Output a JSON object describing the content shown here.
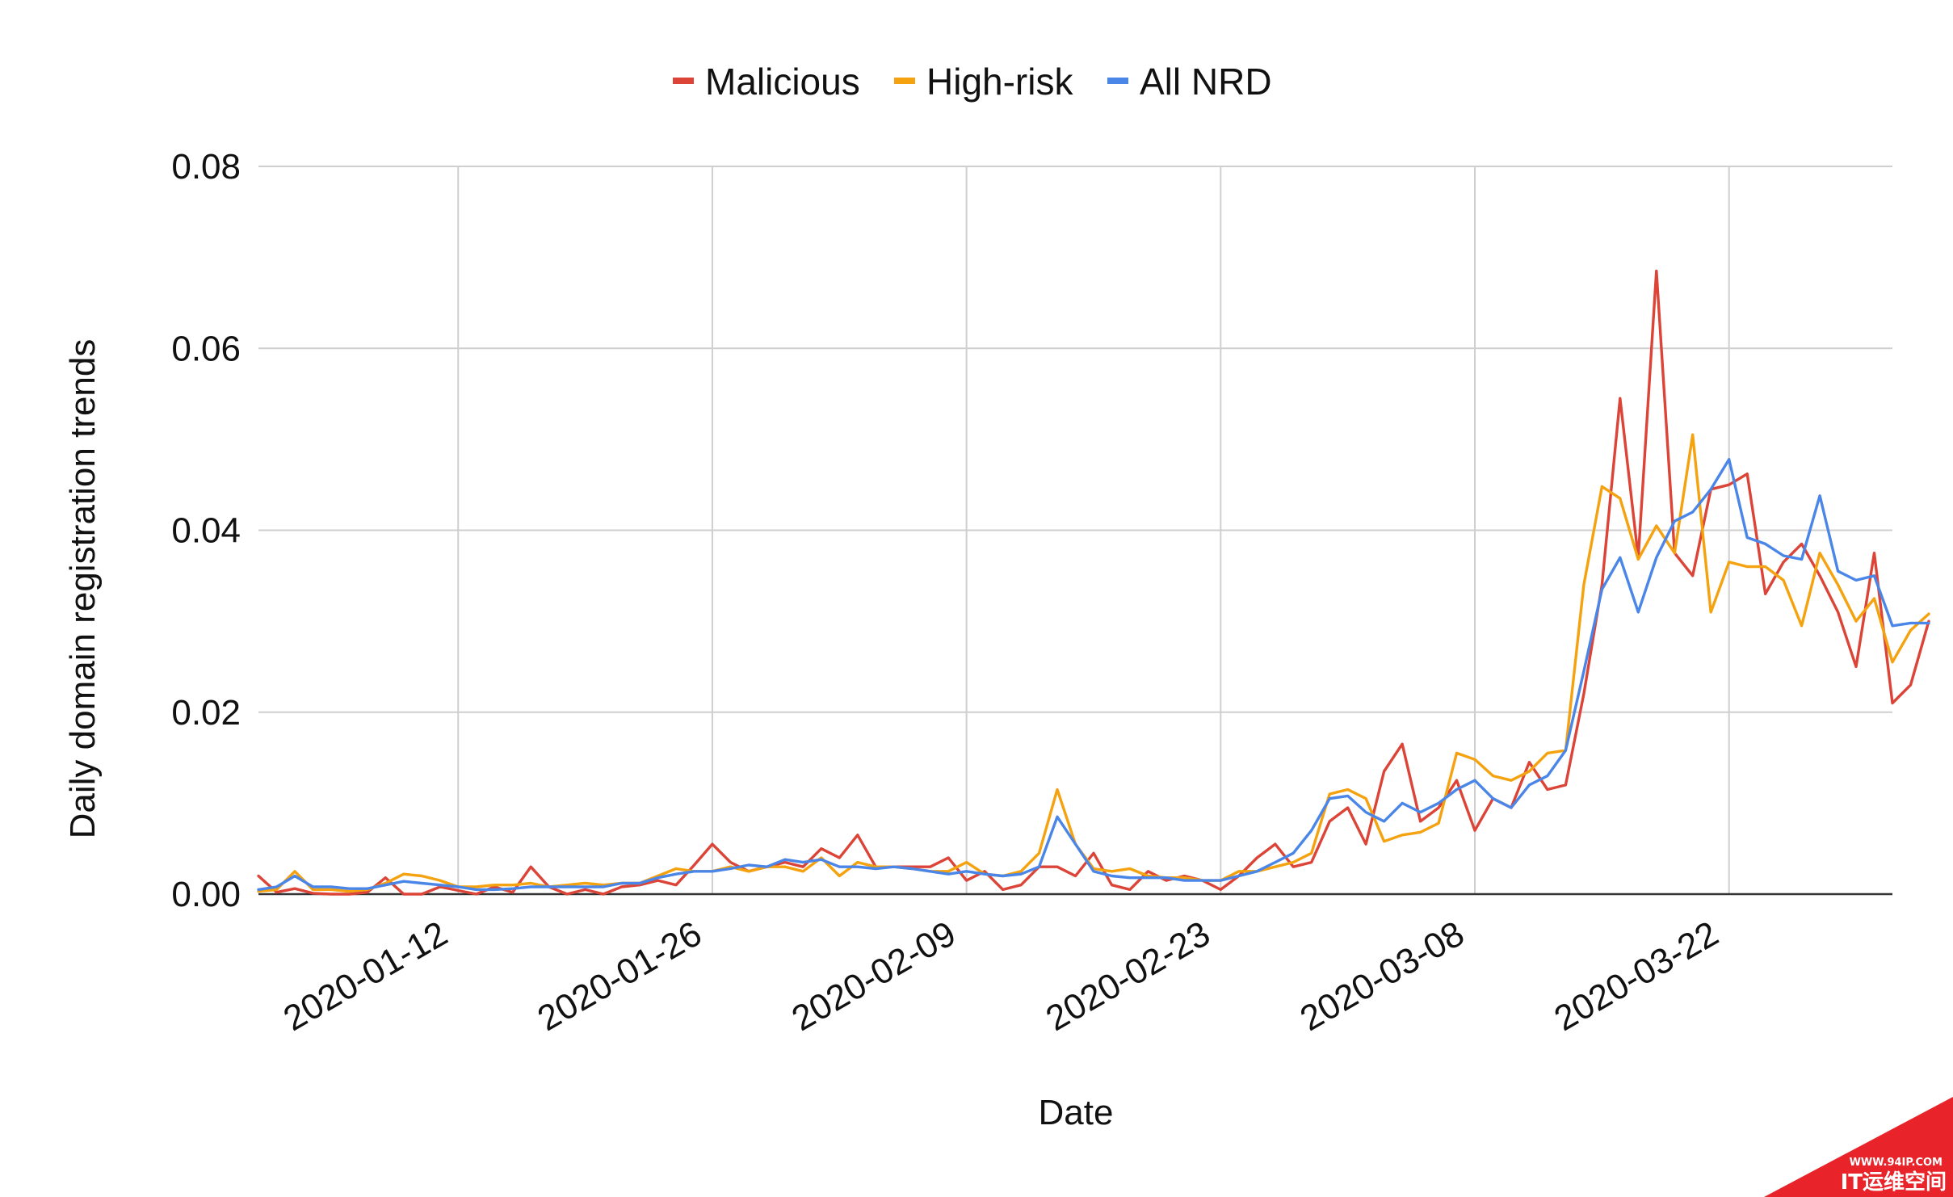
{
  "chart_data": {
    "type": "line",
    "title": "",
    "xlabel": "Date",
    "ylabel": "Daily domain registration trends",
    "ylim": [
      0,
      0.08
    ],
    "y_ticks": [
      "0.00",
      "0.02",
      "0.04",
      "0.06",
      "0.08"
    ],
    "y_tick_values": [
      0,
      0.02,
      0.04,
      0.06,
      0.08
    ],
    "x_start": "2020-01-01",
    "x_end": "2020-03-31",
    "x_ticks": [
      "2020-01-12",
      "2020-01-26",
      "2020-02-09",
      "2020-02-23",
      "2020-03-08",
      "2020-03-22"
    ],
    "grid": true,
    "legend_position": "top",
    "series": [
      {
        "name": "Malicious",
        "color": "#db4437",
        "values": [
          0.002,
          0.0002,
          0.0006,
          0.0001,
          0,
          0,
          0.0002,
          0.0018,
          0,
          0,
          0.0008,
          0.0004,
          0,
          0.0008,
          0.0002,
          0.003,
          0.0008,
          0,
          0.0005,
          0,
          0.0008,
          0.001,
          0.0015,
          0.001,
          0.0032,
          0.0055,
          0.0035,
          0.0025,
          0.003,
          0.0035,
          0.003,
          0.005,
          0.004,
          0.0065,
          0.003,
          0.003,
          0.003,
          0.003,
          0.004,
          0.0015,
          0.0025,
          0.0005,
          0.001,
          0.003,
          0.003,
          0.002,
          0.0045,
          0.001,
          0.0005,
          0.0025,
          0.0015,
          0.002,
          0.0015,
          0.0005,
          0.002,
          0.004,
          0.0055,
          0.003,
          0.0035,
          0.008,
          0.0095,
          0.0055,
          0.0135,
          0.0165,
          0.008,
          0.0095,
          0.0125,
          0.007,
          0.0105,
          0.0095,
          0.0145,
          0.0115,
          0.012,
          0.022,
          0.034,
          0.0545,
          0.037,
          0.0685,
          0.0375,
          0.035,
          0.0445,
          0.045,
          0.0462,
          0.033,
          0.0365,
          0.0385,
          0.035,
          0.031,
          0.025,
          0.0375,
          0.021,
          0.023,
          0.03
        ]
      },
      {
        "name": "High-risk",
        "color": "#f4a20f",
        "values": [
          0.0003,
          0.0005,
          0.0025,
          0.0005,
          0.0005,
          0.0003,
          0.0005,
          0.0012,
          0.0022,
          0.002,
          0.0015,
          0.0008,
          0.0008,
          0.001,
          0.001,
          0.0012,
          0.0008,
          0.001,
          0.0012,
          0.001,
          0.0012,
          0.0012,
          0.002,
          0.0028,
          0.0025,
          0.0025,
          0.003,
          0.0025,
          0.003,
          0.003,
          0.0025,
          0.004,
          0.002,
          0.0035,
          0.003,
          0.003,
          0.0028,
          0.0025,
          0.0025,
          0.0035,
          0.0022,
          0.002,
          0.0025,
          0.0045,
          0.0115,
          0.0055,
          0.0028,
          0.0025,
          0.0028,
          0.002,
          0.0018,
          0.0018,
          0.0015,
          0.0015,
          0.0025,
          0.0025,
          0.003,
          0.0035,
          0.0045,
          0.011,
          0.0115,
          0.0105,
          0.0058,
          0.0065,
          0.0068,
          0.0078,
          0.0155,
          0.0148,
          0.013,
          0.0125,
          0.0135,
          0.0155,
          0.0158,
          0.034,
          0.0448,
          0.0435,
          0.0368,
          0.0405,
          0.0375,
          0.0505,
          0.031,
          0.0365,
          0.036,
          0.036,
          0.0345,
          0.0295,
          0.0375,
          0.034,
          0.03,
          0.0325,
          0.0255,
          0.029,
          0.0308
        ]
      },
      {
        "name": "All NRD",
        "color": "#4a86e8",
        "values": [
          0.0005,
          0.0008,
          0.002,
          0.0008,
          0.0008,
          0.0006,
          0.0006,
          0.001,
          0.0014,
          0.0012,
          0.001,
          0.0008,
          0.0005,
          0.0005,
          0.0006,
          0.0008,
          0.0008,
          0.0008,
          0.0008,
          0.0008,
          0.0012,
          0.0012,
          0.0018,
          0.0022,
          0.0025,
          0.0025,
          0.0028,
          0.0032,
          0.003,
          0.0038,
          0.0035,
          0.0038,
          0.003,
          0.003,
          0.0028,
          0.003,
          0.0028,
          0.0025,
          0.0022,
          0.0025,
          0.0022,
          0.002,
          0.0022,
          0.003,
          0.0085,
          0.0055,
          0.0025,
          0.002,
          0.0018,
          0.0018,
          0.0018,
          0.0015,
          0.0015,
          0.0015,
          0.002,
          0.0025,
          0.0035,
          0.0045,
          0.007,
          0.0105,
          0.0108,
          0.009,
          0.008,
          0.01,
          0.009,
          0.01,
          0.0115,
          0.0125,
          0.0105,
          0.0095,
          0.012,
          0.013,
          0.0158,
          0.0245,
          0.0335,
          0.037,
          0.031,
          0.037,
          0.041,
          0.042,
          0.0445,
          0.0478,
          0.0392,
          0.0385,
          0.0372,
          0.0368,
          0.0438,
          0.0355,
          0.0345,
          0.035,
          0.0295,
          0.0298,
          0.0298
        ]
      }
    ]
  },
  "watermark": {
    "url_text": "WWW.94IP.COM",
    "brand_text": "IT运维空间",
    "color": "#e8232a"
  }
}
